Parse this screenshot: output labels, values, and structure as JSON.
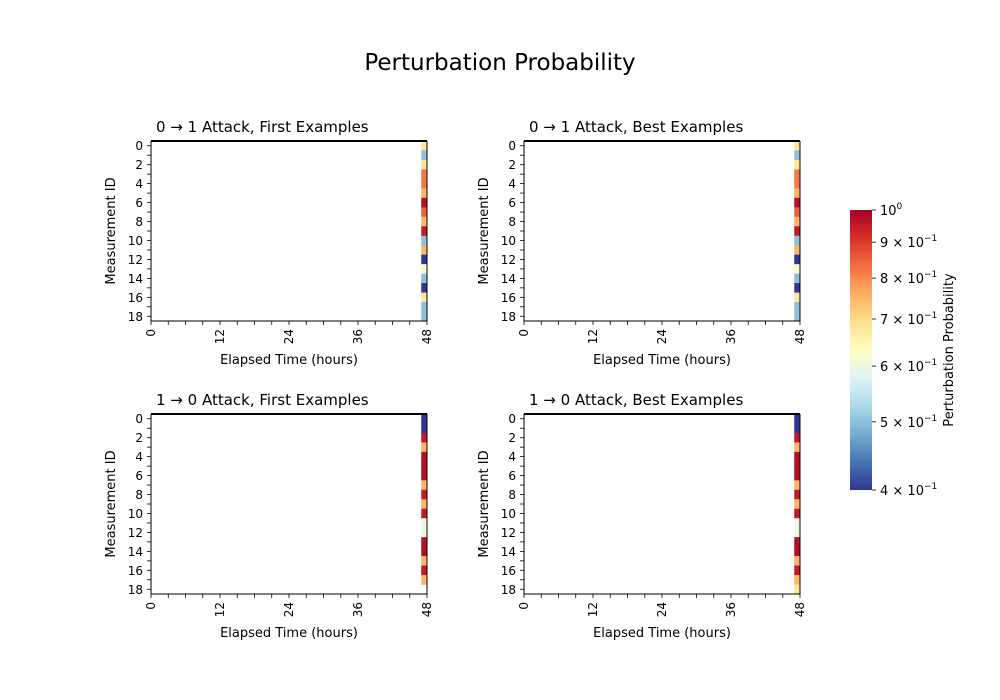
{
  "figure": {
    "title": "Perturbation Probability"
  },
  "colorbar": {
    "label": "Perturbation Probability",
    "scale": "log",
    "range": [
      0.4,
      1.0
    ],
    "colormap": "RdYlBu_r",
    "tick_labels": [
      {
        "value": 1.0,
        "base": "10",
        "exp": "0",
        "mantissa": ""
      },
      {
        "value": 0.9,
        "base": "10",
        "exp": "−1",
        "mantissa": "9 × "
      },
      {
        "value": 0.8,
        "base": "10",
        "exp": "−1",
        "mantissa": "8 × "
      },
      {
        "value": 0.7,
        "base": "10",
        "exp": "−1",
        "mantissa": "7 × "
      },
      {
        "value": 0.6,
        "base": "10",
        "exp": "−1",
        "mantissa": "6 × "
      },
      {
        "value": 0.5,
        "base": "10",
        "exp": "−1",
        "mantissa": "5 × "
      },
      {
        "value": 0.4,
        "base": "10",
        "exp": "−1",
        "mantissa": "4 × "
      }
    ]
  },
  "chart_data": [
    {
      "type": "heatmap",
      "title": "0 → 1 Attack, First Examples",
      "xlabel": "Elapsed Time (hours)",
      "ylabel": "Measurement ID",
      "x_ticks": [
        "0",
        "12",
        "24",
        "36",
        "48"
      ],
      "y_ticks": [
        "0",
        "2",
        "4",
        "6",
        "8",
        "10",
        "12",
        "14",
        "16",
        "18"
      ],
      "n_hours": 48,
      "n_measurements": 19,
      "cell_hour": 47,
      "values_at_hour_47": [
        0.68,
        0.5,
        0.68,
        0.82,
        0.82,
        0.75,
        0.97,
        0.85,
        0.75,
        0.95,
        0.5,
        0.75,
        0.4,
        0.62,
        0.5,
        0.4,
        0.68,
        0.5,
        0.5
      ]
    },
    {
      "type": "heatmap",
      "title": "0 → 1 Attack, Best Examples",
      "xlabel": "Elapsed Time (hours)",
      "ylabel": "Measurement ID",
      "x_ticks": [
        "0",
        "12",
        "24",
        "36",
        "48"
      ],
      "y_ticks": [
        "0",
        "2",
        "4",
        "6",
        "8",
        "10",
        "12",
        "14",
        "16",
        "18"
      ],
      "n_hours": 48,
      "n_measurements": 19,
      "cell_hour": 47,
      "values_at_hour_47": [
        0.68,
        0.5,
        0.68,
        0.82,
        0.82,
        0.75,
        0.97,
        0.85,
        0.75,
        0.95,
        0.5,
        0.75,
        0.4,
        0.62,
        0.5,
        0.4,
        0.68,
        0.5,
        0.5
      ]
    },
    {
      "type": "heatmap",
      "title": "1 → 0 Attack, First Examples",
      "xlabel": "Elapsed Time (hours)",
      "ylabel": "Measurement ID",
      "x_ticks": [
        "0",
        "12",
        "24",
        "36",
        "48"
      ],
      "y_ticks": [
        "0",
        "2",
        "4",
        "6",
        "8",
        "10",
        "12",
        "14",
        "16",
        "18"
      ],
      "n_hours": 48,
      "n_measurements": 19,
      "cell_hour": 47,
      "values_at_hour_47": [
        0.4,
        0.4,
        0.95,
        0.75,
        0.97,
        0.97,
        0.97,
        0.75,
        0.95,
        0.75,
        0.95,
        0.6,
        0.6,
        0.97,
        0.97,
        0.75,
        0.95,
        0.75,
        null
      ]
    },
    {
      "type": "heatmap",
      "title": "1 → 0 Attack, Best Examples",
      "xlabel": "Elapsed Time (hours)",
      "ylabel": "Measurement ID",
      "x_ticks": [
        "0",
        "12",
        "24",
        "36",
        "48"
      ],
      "y_ticks": [
        "0",
        "2",
        "4",
        "6",
        "8",
        "10",
        "12",
        "14",
        "16",
        "18"
      ],
      "n_hours": 48,
      "n_measurements": 19,
      "cell_hour": 47,
      "values_at_hour_47": [
        0.4,
        0.4,
        0.95,
        0.75,
        0.97,
        0.97,
        0.97,
        0.75,
        0.95,
        0.75,
        0.95,
        0.6,
        0.6,
        0.97,
        0.97,
        0.75,
        0.95,
        0.75,
        0.68
      ]
    }
  ]
}
